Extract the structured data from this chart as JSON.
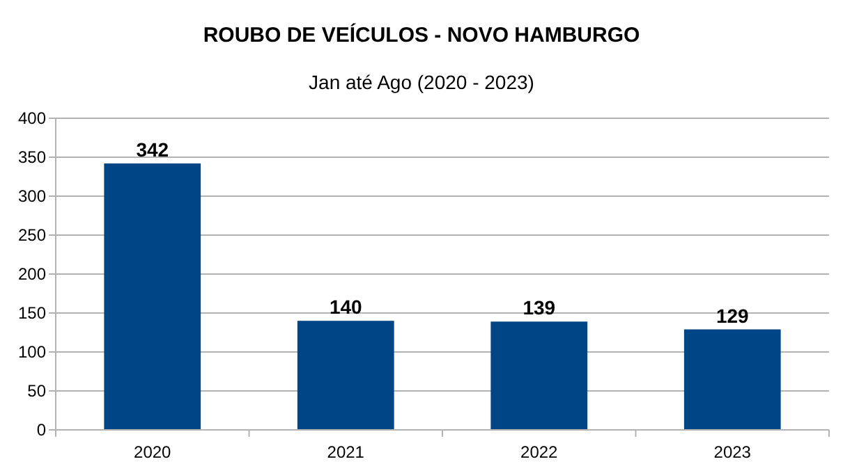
{
  "chart_data": {
    "type": "bar",
    "title": "ROUBO DE VEÍCULOS - NOVO HAMBURGO",
    "subtitle": "Jan até Ago (2020 - 2023)",
    "categories": [
      "2020",
      "2021",
      "2022",
      "2023"
    ],
    "values": [
      342,
      140,
      139,
      129
    ],
    "color": "#004586",
    "ylim": [
      0,
      400
    ],
    "yticks": [
      0,
      50,
      100,
      150,
      200,
      250,
      300,
      350,
      400
    ],
    "grid": "y",
    "data_labels": true
  }
}
